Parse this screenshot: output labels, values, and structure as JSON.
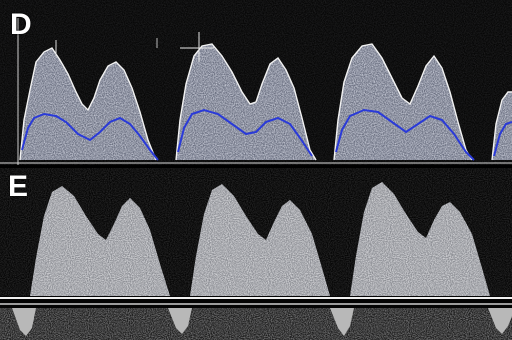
{
  "panels": [
    {
      "label": "D"
    },
    {
      "label": "E"
    }
  ]
}
